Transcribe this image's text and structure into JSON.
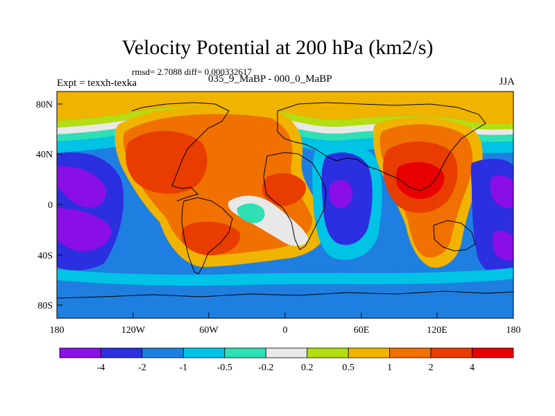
{
  "header": {
    "title": "Velocity Potential at 200 hPa (km2/s)",
    "stats": "rmsd= 2.7088 diff= 0.000332617",
    "expt": "Expt = texxh-texka",
    "case": "035_9_MaBP - 000_0_MaBP",
    "season": "JJA"
  },
  "axes": {
    "y_labels": [
      "80N",
      "40N",
      "0",
      "40S",
      "80S"
    ],
    "x_labels": [
      "180",
      "120W",
      "60W",
      "0",
      "60E",
      "120E",
      "180"
    ]
  },
  "colorbar": {
    "labels": [
      "-4",
      "-2",
      "-1",
      "-0.5",
      "-0.2",
      "0.2",
      "0.5",
      "1",
      "2",
      "4"
    ],
    "colors": [
      "#8a0ee6",
      "#2b2fe0",
      "#1e7fe0",
      "#00c3e6",
      "#2ee0b4",
      "#e8e8e8",
      "#b4de10",
      "#f0b400",
      "#f07000",
      "#e83c00",
      "#e80000"
    ]
  },
  "palette": {
    "strong_neg": "#8a0ee6",
    "neg4": "#2b2fe0",
    "neg2": "#1e7fe0",
    "neg1": "#00c3e6",
    "neg05": "#2ee0b4",
    "neutral": "#e8e8e8",
    "pos02": "#b4de10",
    "pos05": "#f0b400",
    "pos1": "#f07000",
    "pos2": "#e83c00",
    "pos4": "#e80000"
  }
}
